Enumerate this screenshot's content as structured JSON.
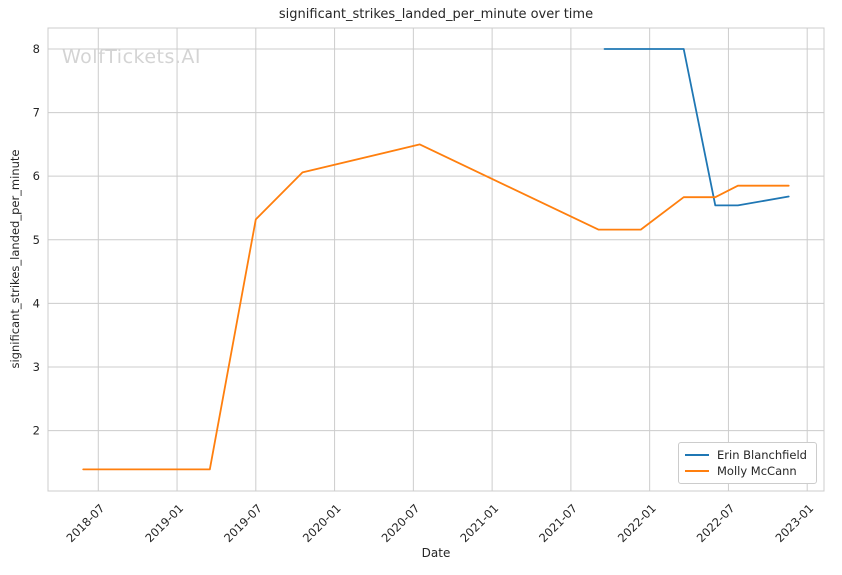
{
  "watermark": {
    "text": "WolfTickets.AI"
  },
  "chart_data": {
    "type": "line",
    "title": "significant_strikes_landed_per_minute over time",
    "xlabel": "Date",
    "ylabel": "significant_strikes_landed_per_minute",
    "grid": true,
    "legend_position": "lower right",
    "grid_color": "#cccccc",
    "spine_color": "#cccccc",
    "text_color": "#262626",
    "background_color": "#ffffff",
    "x_ticks": [
      "2018-07",
      "2019-01",
      "2019-07",
      "2020-01",
      "2020-07",
      "2021-01",
      "2021-07",
      "2022-01",
      "2022-07",
      "2023-01"
    ],
    "y_ticks": [
      2,
      3,
      4,
      5,
      6,
      7,
      8
    ],
    "x_domain_months": [
      2.17,
      61.28
    ],
    "y_domain": [
      1.05,
      8.33
    ],
    "series": [
      {
        "name": "Erin Blanchfield",
        "color": "#1f77b4",
        "points": [
          {
            "date": "2021-09-18",
            "value": 8.0
          },
          {
            "date": "2022-03-19",
            "value": 8.0
          },
          {
            "date": "2022-06-01",
            "value": 5.54
          },
          {
            "date": "2022-07-23",
            "value": 5.54
          },
          {
            "date": "2022-11-19",
            "value": 5.68
          }
        ]
      },
      {
        "name": "Molly McCann",
        "color": "#ff7f0e",
        "points": [
          {
            "date": "2018-05-27",
            "value": 1.39
          },
          {
            "date": "2019-03-16",
            "value": 1.39
          },
          {
            "date": "2019-07-01",
            "value": 5.32
          },
          {
            "date": "2019-10-18",
            "value": 6.06
          },
          {
            "date": "2020-07-16",
            "value": 6.5
          },
          {
            "date": "2021-09-04",
            "value": 5.16
          },
          {
            "date": "2021-12-11",
            "value": 5.16
          },
          {
            "date": "2022-03-19",
            "value": 5.67
          },
          {
            "date": "2022-06-01",
            "value": 5.67
          },
          {
            "date": "2022-07-23",
            "value": 5.85
          },
          {
            "date": "2022-11-19",
            "value": 5.85
          }
        ]
      }
    ]
  }
}
